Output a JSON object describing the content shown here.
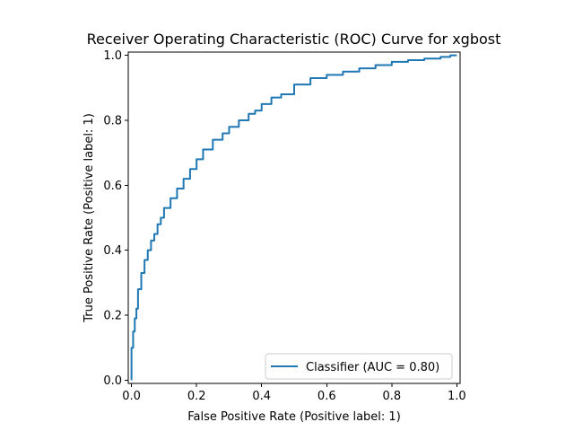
{
  "chart_data": {
    "type": "line",
    "title": "Receiver Operating Characteristic (ROC) Curve for xgbost",
    "xlabel": "False Positive Rate (Positive label: 1)",
    "ylabel": "True Positive Rate (Positive label: 1)",
    "xlim": [
      -0.01,
      1.01
    ],
    "ylim": [
      -0.01,
      1.01
    ],
    "xticks": [
      0.0,
      0.2,
      0.4,
      0.6,
      0.8,
      1.0
    ],
    "yticks": [
      0.0,
      0.2,
      0.4,
      0.6,
      0.8,
      1.0
    ],
    "xtick_labels": [
      "0.0",
      "0.2",
      "0.4",
      "0.6",
      "0.8",
      "1.0"
    ],
    "ytick_labels": [
      "0.0",
      "0.2",
      "0.4",
      "0.6",
      "0.8",
      "1.0"
    ],
    "grid": false,
    "legend_position": "lower-right",
    "series": [
      {
        "name": "Classifier (AUC = 0.80)",
        "color": "#1f77b4",
        "x": [
          0.0,
          0.0,
          0.005,
          0.01,
          0.015,
          0.02,
          0.03,
          0.04,
          0.05,
          0.06,
          0.07,
          0.08,
          0.09,
          0.1,
          0.12,
          0.14,
          0.16,
          0.18,
          0.2,
          0.22,
          0.25,
          0.28,
          0.3,
          0.33,
          0.36,
          0.38,
          0.4,
          0.43,
          0.46,
          0.5,
          0.55,
          0.6,
          0.65,
          0.7,
          0.75,
          0.8,
          0.85,
          0.9,
          0.95,
          0.98,
          1.0
        ],
        "y": [
          0.0,
          0.03,
          0.1,
          0.15,
          0.19,
          0.22,
          0.28,
          0.33,
          0.37,
          0.4,
          0.43,
          0.45,
          0.48,
          0.5,
          0.53,
          0.56,
          0.59,
          0.62,
          0.65,
          0.68,
          0.71,
          0.74,
          0.76,
          0.78,
          0.8,
          0.82,
          0.83,
          0.85,
          0.87,
          0.88,
          0.91,
          0.93,
          0.94,
          0.95,
          0.96,
          0.97,
          0.98,
          0.985,
          0.99,
          0.995,
          1.0
        ]
      }
    ]
  }
}
